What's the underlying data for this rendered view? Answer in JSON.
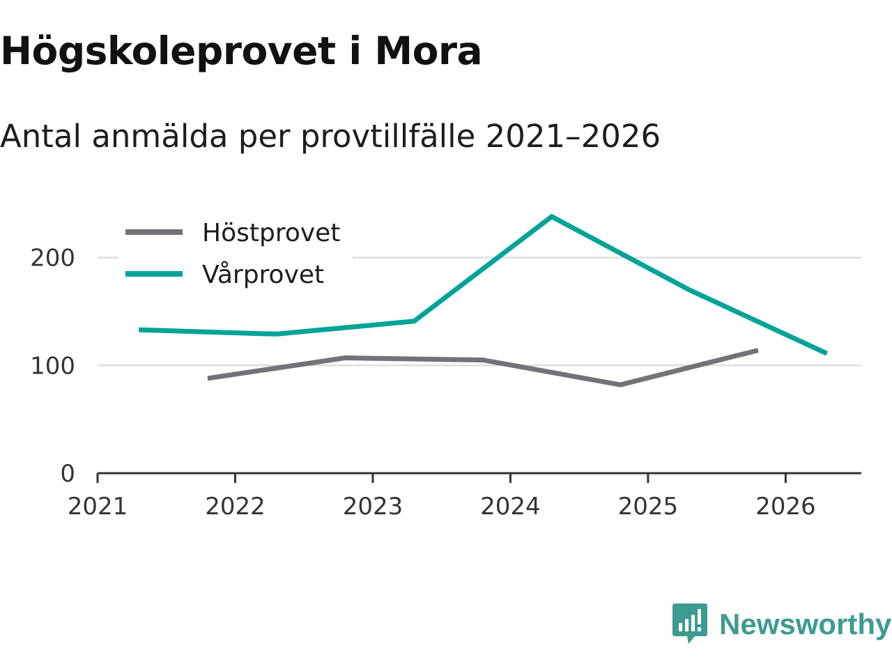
{
  "title": "Högskoleprovet i Mora",
  "subtitle": "Antal anmälda per provtillfälle 2021–2026",
  "brand": {
    "name": "Newsworthy",
    "logo_icon": "newsworthy-logo-icon",
    "color": "#3d9b91"
  },
  "chart_data": {
    "type": "line",
    "title": "Högskoleprovet i Mora",
    "subtitle": "Antal anmälda per provtillfälle 2021–2026",
    "xlabel": "",
    "ylabel": "",
    "xlim": [
      2021,
      2026.55
    ],
    "ylim": [
      0,
      245
    ],
    "x_ticks": [
      2021,
      2022,
      2023,
      2024,
      2025,
      2026
    ],
    "x_tick_labels": [
      "2021",
      "2022",
      "2023",
      "2024",
      "2025",
      "2026"
    ],
    "y_ticks": [
      0,
      100,
      200
    ],
    "y_tick_labels": [
      "0",
      "100",
      "200"
    ],
    "grid": true,
    "legend_position": "top-left",
    "series": [
      {
        "name": "Höstprovet",
        "color": "#737278",
        "x": [
          2021.8,
          2022.8,
          2023.8,
          2024.8,
          2025.8
        ],
        "values": [
          88,
          107,
          105,
          82,
          114
        ]
      },
      {
        "name": "Vårprovet",
        "color": "#00a398",
        "x": [
          2021.3,
          2022.3,
          2023.3,
          2024.3,
          2025.3,
          2026.3
        ],
        "values": [
          133,
          129,
          141,
          238,
          170,
          111
        ]
      }
    ]
  }
}
